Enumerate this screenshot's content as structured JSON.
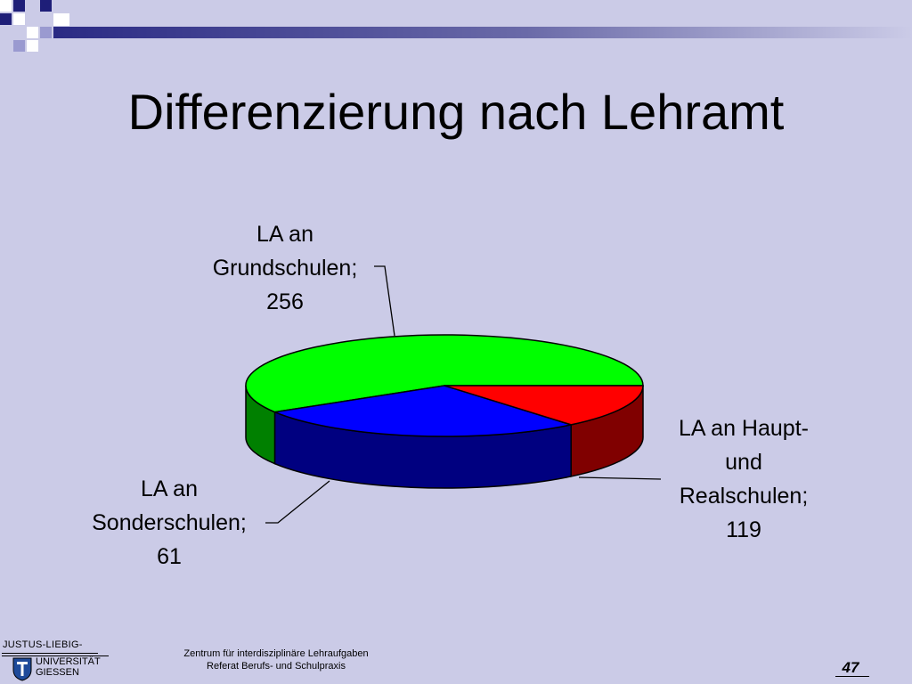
{
  "slide": {
    "title": "Differenzierung nach Lehramt",
    "page_number": "47"
  },
  "footer": {
    "line1": "Zentrum für interdisziplinäre Lehraufgaben",
    "line2": "Referat Berufs- und Schulpraxis"
  },
  "logo": {
    "line1": "JUSTUS-LIEBIG-",
    "line2": "UNIVERSITÄT",
    "line3": "GIESSEN"
  },
  "chart_data": {
    "type": "pie",
    "style": "3d",
    "title": "",
    "labels": [
      [
        "LA an",
        "Grundschulen;",
        "256"
      ],
      [
        "LA an Haupt-",
        "und",
        "Realschulen;",
        "119"
      ],
      [
        "LA an",
        "Sonderschulen;",
        "61"
      ]
    ],
    "categories": [
      "LA an Grundschulen",
      "LA an Haupt- und Realschulen",
      "LA an Sonderschulen"
    ],
    "values": [
      256,
      119,
      61
    ],
    "colors": [
      "#00ff00",
      "#0000ff",
      "#ff0000"
    ],
    "side_colors": [
      "#008000",
      "#000080",
      "#800000"
    ]
  }
}
